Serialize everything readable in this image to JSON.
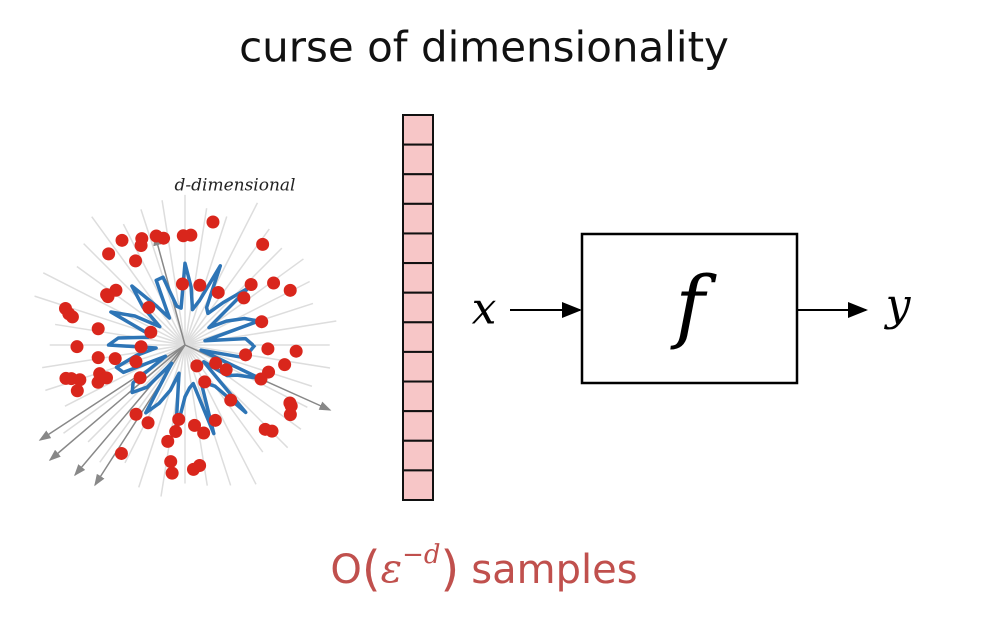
{
  "title": "curse of dimensionality",
  "illustration": {
    "label": "d-dimensional"
  },
  "diagram": {
    "input": "x",
    "function": "f",
    "output": "y"
  },
  "caption": {
    "big_o": "O",
    "open": "(",
    "epsilon": "ε",
    "exponent": "−d",
    "close": ")",
    "unit": "samples"
  }
}
